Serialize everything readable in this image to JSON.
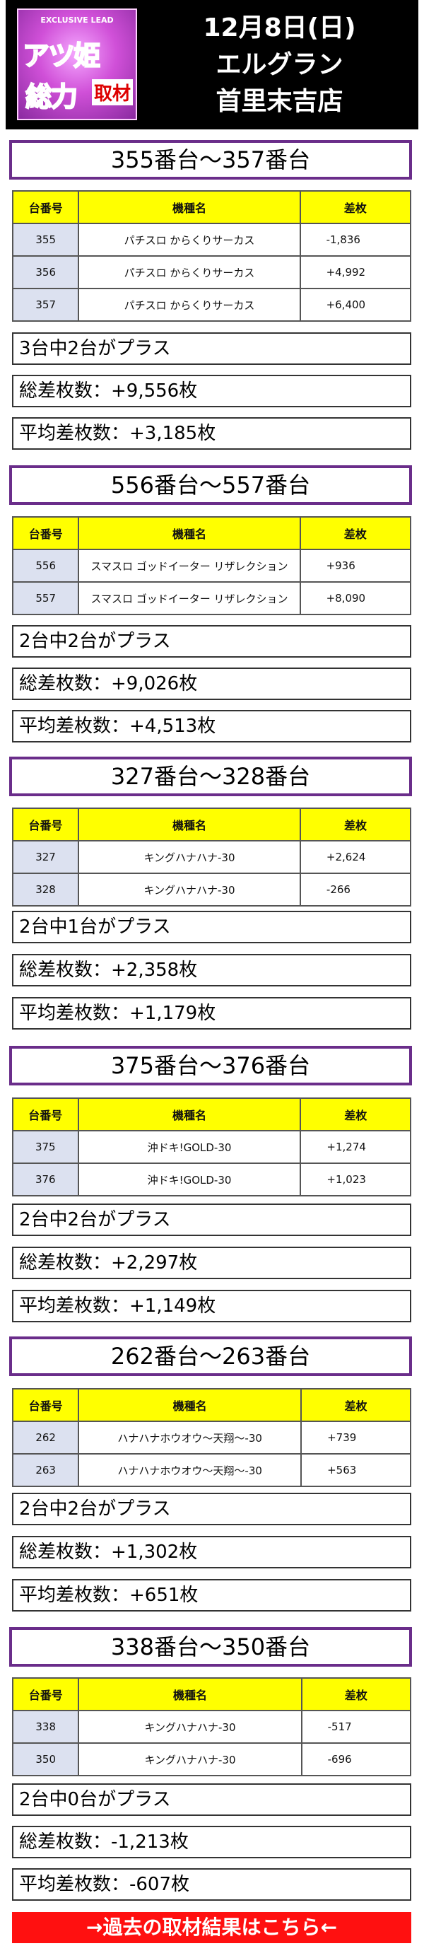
{
  "header": {
    "logo_top": "EXCLUSIVE LEAD",
    "logo_word1": "アツ姫",
    "logo_word2": "総力",
    "logo_word3": "取材",
    "date": "12月8日(日)",
    "store_line1": "エルグラン",
    "store_line2": "首里末吉店"
  },
  "table_headers": {
    "col1": "台番号",
    "col2": "機種名",
    "col3": "差枚"
  },
  "sections": [
    {
      "title": "355番台～357番台",
      "rows": [
        {
          "no": "355",
          "machine": "パチスロ からくりサーカス",
          "diff": "-1,836"
        },
        {
          "no": "356",
          "machine": "パチスロ からくりサーカス",
          "diff": "+4,992"
        },
        {
          "no": "357",
          "machine": "パチスロ からくりサーカス",
          "diff": "+6,400"
        }
      ],
      "plus_count": "3台中2台がプラス",
      "total": "総差枚数：+9,556枚",
      "average": "平均差枚数：+3,185枚"
    },
    {
      "title": "556番台～557番台",
      "rows": [
        {
          "no": "556",
          "machine": "スマスロ ゴッドイーター リザレクション",
          "diff": "+936"
        },
        {
          "no": "557",
          "machine": "スマスロ ゴッドイーター リザレクション",
          "diff": "+8,090"
        }
      ],
      "plus_count": "2台中2台がプラス",
      "total": "総差枚数：+9,026枚",
      "average": "平均差枚数：+4,513枚"
    },
    {
      "title": "327番台～328番台",
      "rows": [
        {
          "no": "327",
          "machine": "キングハナハナ-30",
          "diff": "+2,624"
        },
        {
          "no": "328",
          "machine": "キングハナハナ-30",
          "diff": "-266"
        }
      ],
      "plus_count": "2台中1台がプラス",
      "total": "総差枚数：+2,358枚",
      "average": "平均差枚数：+1,179枚"
    },
    {
      "title": "375番台～376番台",
      "rows": [
        {
          "no": "375",
          "machine": "沖ドキ!GOLD-30",
          "diff": "+1,274"
        },
        {
          "no": "376",
          "machine": "沖ドキ!GOLD-30",
          "diff": "+1,023"
        }
      ],
      "plus_count": "2台中2台がプラス",
      "total": "総差枚数：+2,297枚",
      "average": "平均差枚数：+1,149枚"
    },
    {
      "title": "262番台～263番台",
      "rows": [
        {
          "no": "262",
          "machine": "ハナハナホウオウ～天翔～-30",
          "diff": "+739"
        },
        {
          "no": "263",
          "machine": "ハナハナホウオウ～天翔～-30",
          "diff": "+563"
        }
      ],
      "plus_count": "2台中2台がプラス",
      "total": "総差枚数：+1,302枚",
      "average": "平均差枚数：+651枚"
    },
    {
      "title": "338番台～350番台",
      "rows": [
        {
          "no": "338",
          "machine": "キングハナハナ-30",
          "diff": "-517"
        },
        {
          "no": "350",
          "machine": "キングハナハナ-30",
          "diff": "-696"
        }
      ],
      "plus_count": "2台中0台がプラス",
      "total": "総差枚数：-1,213枚",
      "average": "平均差枚数：-607枚"
    }
  ],
  "footer_link": "→過去の取材結果はこちら←"
}
